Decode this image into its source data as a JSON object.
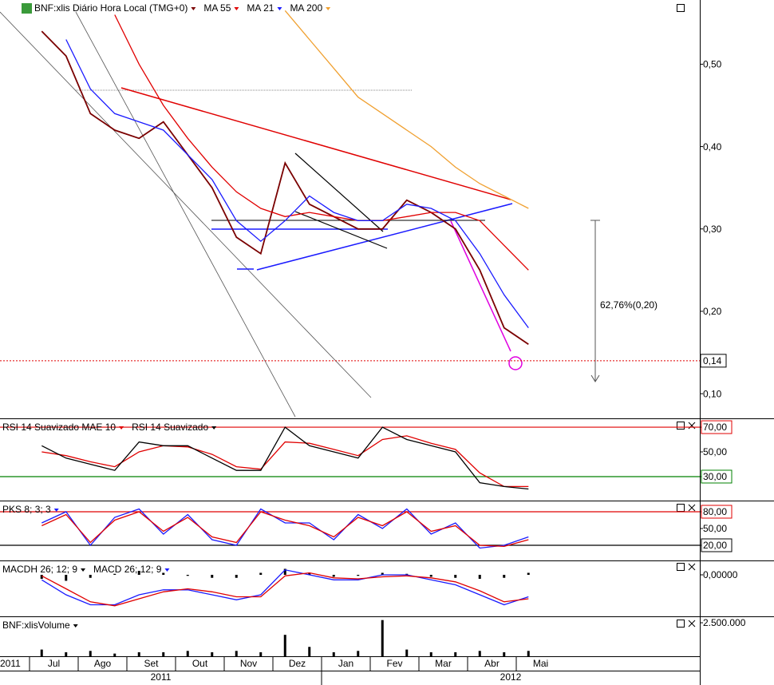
{
  "chart_data": [
    {
      "type": "line",
      "annotation": "62,76%(0,20)",
      "last_price": {
        "value": 0.14,
        "label": "0,14"
      },
      "ylim": [
        0.072,
        0.576
      ],
      "yticks": [
        {
          "value": 0.1,
          "label": "0,10"
        },
        {
          "value": 0.2,
          "label": "0,20"
        },
        {
          "value": 0.3,
          "label": "0,30"
        },
        {
          "value": 0.4,
          "label": "0,40"
        },
        {
          "value": 0.5,
          "label": "0,50"
        }
      ],
      "series": [
        {
          "name": "BNF:xlis Diário Hora Local (TMG+0)",
          "color": "#7a0000",
          "values": [
            0.54,
            0.51,
            0.44,
            0.42,
            0.41,
            0.43,
            0.39,
            0.35,
            0.29,
            0.27,
            0.38,
            0.33,
            0.315,
            0.3,
            0.3,
            0.335,
            0.32,
            0.3,
            0.25,
            0.18,
            0.16,
            null
          ]
        },
        {
          "name": "MA 55",
          "color": "#e00000",
          "values": [
            null,
            null,
            null,
            0.56,
            0.5,
            0.45,
            0.41,
            0.375,
            0.345,
            0.325,
            0.315,
            0.32,
            0.315,
            0.31,
            0.31,
            0.315,
            0.32,
            0.32,
            0.31,
            0.28,
            0.25,
            null
          ]
        },
        {
          "name": "MA 21",
          "color": "#1a1aff",
          "values": [
            null,
            0.53,
            0.47,
            0.44,
            0.43,
            0.42,
            0.39,
            0.36,
            0.31,
            0.285,
            0.31,
            0.34,
            0.32,
            0.31,
            0.31,
            0.33,
            0.325,
            0.31,
            0.27,
            0.22,
            0.18,
            null
          ]
        },
        {
          "name": "MA 200",
          "color": "#f0a030",
          "values": [
            null,
            null,
            null,
            null,
            null,
            null,
            null,
            null,
            null,
            null,
            0.565,
            0.53,
            0.495,
            0.46,
            0.44,
            0.42,
            0.4,
            0.375,
            0.355,
            0.34,
            0.325,
            null
          ]
        }
      ]
    },
    {
      "type": "line",
      "ylim": [
        11.9,
        75.2
      ],
      "yticks": [
        {
          "value": 70,
          "label": "70,00"
        },
        {
          "value": 50,
          "label": "50,00"
        },
        {
          "value": 30,
          "label": "30,00"
        }
      ],
      "levels": [
        {
          "value": 70,
          "color": "#e00000"
        },
        {
          "value": 30,
          "color": "#008000"
        }
      ],
      "series": [
        {
          "name": "RSI 14 Suavizado MAE 10",
          "color": "#e00000",
          "values": [
            50,
            47,
            42,
            38,
            50,
            55,
            54,
            48,
            38,
            36,
            58,
            57,
            52,
            47,
            60,
            63,
            57,
            52,
            33,
            22,
            22,
            null
          ]
        },
        {
          "name": "RSI 14 Suavizado",
          "color": "#000000",
          "values": [
            55,
            45,
            40,
            35,
            58,
            55,
            55,
            45,
            35,
            35,
            70,
            55,
            50,
            45,
            70,
            60,
            55,
            50,
            25,
            22,
            20,
            null
          ]
        }
      ]
    },
    {
      "type": "line",
      "ylim": [
        -4.3,
        95.7
      ],
      "yticks": [
        {
          "value": 80,
          "label": "80,00"
        },
        {
          "value": 50,
          "label": "50,00"
        },
        {
          "value": 20,
          "label": "20,00"
        }
      ],
      "levels": [
        {
          "value": 80,
          "color": "#e00000"
        },
        {
          "value": 20,
          "color": "#000000"
        }
      ],
      "series": [
        {
          "name": "PKS 8; 3; 3",
          "color": "#1a1aff",
          "values": [
            60,
            80,
            20,
            70,
            85,
            40,
            75,
            30,
            20,
            85,
            60,
            60,
            30,
            75,
            50,
            85,
            40,
            60,
            15,
            20,
            35,
            null
          ]
        },
        {
          "color": "#e00000",
          "values": [
            55,
            75,
            25,
            65,
            80,
            45,
            70,
            35,
            25,
            80,
            65,
            55,
            35,
            70,
            55,
            80,
            45,
            55,
            20,
            18,
            30,
            null
          ]
        }
      ]
    },
    {
      "type": "line",
      "ylim": [
        -0.04,
        0.012
      ],
      "yticks": [
        {
          "value": 0,
          "label": "0,00000"
        }
      ],
      "series": [
        {
          "name": "MACDH 26; 12; 9",
          "color": "#000000",
          "kind": "bar",
          "values": [
            -0.004,
            -0.006,
            -0.003,
            0.001,
            0.004,
            0.002,
            -0.001,
            -0.003,
            -0.003,
            0.002,
            0.006,
            0.002,
            -0.002,
            -0.001,
            0.002,
            0.001,
            -0.002,
            -0.003,
            -0.004,
            -0.003,
            0.002,
            null
          ]
        },
        {
          "name": "MACD 26; 12; 9",
          "color": "#1a1aff",
          "values": [
            -0.005,
            -0.02,
            -0.03,
            -0.03,
            -0.02,
            -0.015,
            -0.015,
            -0.02,
            -0.025,
            -0.02,
            0.005,
            0.0,
            -0.005,
            -0.005,
            0.0,
            0.0,
            -0.005,
            -0.01,
            -0.02,
            -0.03,
            -0.022,
            null
          ]
        },
        {
          "color": "#e00000",
          "values": [
            -0.001,
            -0.014,
            -0.027,
            -0.031,
            -0.024,
            -0.017,
            -0.014,
            -0.017,
            -0.022,
            -0.022,
            -0.001,
            0.002,
            -0.003,
            -0.004,
            -0.002,
            -0.001,
            -0.003,
            -0.007,
            -0.016,
            -0.027,
            -0.024,
            null
          ]
        }
      ]
    },
    {
      "type": "bar",
      "ylim": [
        0,
        2800000
      ],
      "yticks": [
        {
          "value": 2500000,
          "label": "2.500.000"
        }
      ],
      "categories": [
        "Jul",
        null,
        "Ago",
        null,
        "Set",
        null,
        "Out",
        null,
        "Nov",
        null,
        "Dez",
        null,
        "Jan",
        null,
        "Fev",
        null,
        "Mar",
        null,
        "Abr",
        null,
        "Mai",
        null
      ],
      "edge_label": "2011",
      "years": [
        "2011",
        "2012"
      ],
      "series": [
        {
          "name": "BNF:xlisVolume",
          "color": "#000000",
          "values": [
            500000,
            300000,
            400000,
            200000,
            300000,
            300000,
            400000,
            300000,
            400000,
            300000,
            1600000,
            700000,
            300000,
            400000,
            2700000,
            500000,
            300000,
            300000,
            400000,
            300000,
            400000,
            null
          ]
        }
      ]
    }
  ]
}
